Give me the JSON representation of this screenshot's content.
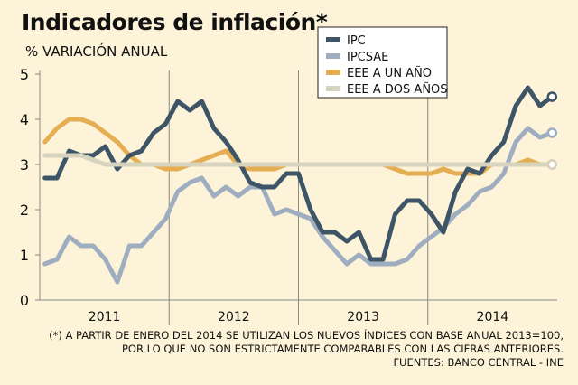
{
  "chart_data": {
    "type": "line",
    "title": "Indicadores de inflación*",
    "ylabel": "% VARIACIÓN ANUAL",
    "ylim": [
      0,
      5
    ],
    "yticks": [
      "0",
      "1",
      "2",
      "3",
      "4",
      "5"
    ],
    "xlim": [
      2010.5,
      2014.5
    ],
    "x_category_labels": [
      {
        "label": "2011",
        "center": 2011.0
      },
      {
        "label": "2012",
        "center": 2012.0
      },
      {
        "label": "2013",
        "center": 2013.0
      },
      {
        "label": "2014",
        "center": 2014.0
      }
    ],
    "year_dividers": [
      2011.5,
      2012.5,
      2013.5
    ],
    "series": [
      {
        "name": "IPC",
        "color": "#3d5566",
        "values": [
          2.7,
          2.7,
          3.3,
          3.2,
          3.2,
          3.4,
          2.9,
          3.2,
          3.3,
          3.7,
          3.9,
          4.4,
          4.2,
          4.4,
          3.8,
          3.5,
          3.1,
          2.6,
          2.5,
          2.5,
          2.8,
          2.8,
          2.0,
          1.5,
          1.5,
          1.3,
          1.5,
          0.9,
          0.9,
          1.9,
          2.2,
          2.2,
          1.9,
          1.5,
          2.4,
          2.9,
          2.8,
          3.2,
          3.5,
          4.3,
          4.7,
          4.3,
          4.5
        ]
      },
      {
        "name": "IPCSAE",
        "color": "#9fadc0",
        "values": [
          0.8,
          0.9,
          1.4,
          1.2,
          1.2,
          0.9,
          0.4,
          1.2,
          1.2,
          1.5,
          1.8,
          2.4,
          2.6,
          2.7,
          2.3,
          2.5,
          2.3,
          2.5,
          2.5,
          1.9,
          2.0,
          1.9,
          1.8,
          1.4,
          1.1,
          0.8,
          1.0,
          0.8,
          0.8,
          0.8,
          0.9,
          1.2,
          1.4,
          1.6,
          1.9,
          2.1,
          2.4,
          2.5,
          2.8,
          3.5,
          3.8,
          3.6,
          3.7
        ]
      },
      {
        "name": "EEE A UN AÑO",
        "color": "#e6ae52",
        "values": [
          3.5,
          3.8,
          4.0,
          4.0,
          3.9,
          3.7,
          3.5,
          3.2,
          3.0,
          3.0,
          2.9,
          2.9,
          3.0,
          3.1,
          3.2,
          3.3,
          3.0,
          2.9,
          2.9,
          2.9,
          3.0,
          3.0,
          3.0,
          3.0,
          3.0,
          3.0,
          3.0,
          3.0,
          3.0,
          2.9,
          2.8,
          2.8,
          2.8,
          2.9,
          2.8,
          2.8,
          2.8,
          3.0,
          3.0,
          3.0,
          3.1,
          3.0,
          3.0
        ]
      },
      {
        "name": "EEE A DOS AÑOS",
        "color": "#d6d3bf",
        "values": [
          3.2,
          3.2,
          3.2,
          3.2,
          3.1,
          3.0,
          3.0,
          3.0,
          3.0,
          3.0,
          3.0,
          3.0,
          3.0,
          3.0,
          3.0,
          3.0,
          3.0,
          3.0,
          3.0,
          3.0,
          3.0,
          3.0,
          3.0,
          3.0,
          3.0,
          3.0,
          3.0,
          3.0,
          3.0,
          3.0,
          3.0,
          3.0,
          3.0,
          3.0,
          3.0,
          3.0,
          3.0,
          3.0,
          3.0,
          3.0,
          3.0,
          3.0,
          3.0
        ]
      }
    ],
    "legend_position": "top-right",
    "end_markers": true
  },
  "footnotes": {
    "line1": "(*) A PARTIR DE ENERO DEL 2014 SE UTILIZAN LOS NUEVOS ÍNDICES CON BASE ANUAL 2013=100,",
    "line2": "POR LO QUE NO SON ESTRICTAMENTE COMPARABLES CON LAS CIFRAS ANTERIORES.",
    "line3": "FUENTES: BANCO CENTRAL - INE"
  },
  "colors": {
    "background": "#fdf3d8",
    "axis": "#888888",
    "legend_bg": "#ffffff"
  }
}
